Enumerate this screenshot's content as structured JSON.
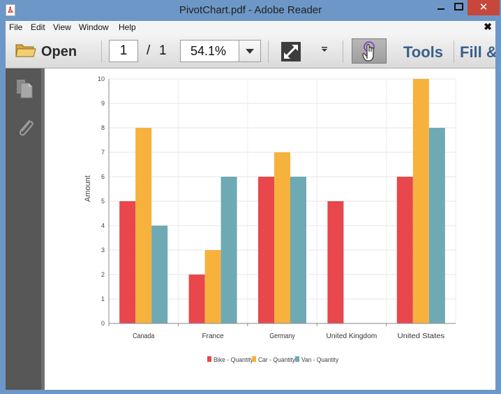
{
  "window": {
    "title": "PivotChart.pdf - Adobe Reader",
    "close_glyph": "✕"
  },
  "menu": {
    "items": [
      "File",
      "Edit",
      "View",
      "Window",
      "Help"
    ],
    "close_glyph": "✖"
  },
  "toolbar": {
    "open_label": "Open",
    "page_current": "1",
    "page_separator": "/",
    "page_total": "1",
    "zoom": "54.1%",
    "tools_label": "Tools",
    "fill_label": "Fill &"
  },
  "icons": {
    "app": "pdf-icon",
    "open": "folder-icon",
    "fit": "expand-arrows-icon",
    "more": "chevron-down-icon",
    "hand": "hand-pointer-icon",
    "pages": "pages-icon",
    "attachments": "paperclip-icon"
  },
  "colors": {
    "titlebar": "#6d97c6",
    "bike": "#e8474c",
    "car": "#f6b23d",
    "van": "#6eaab3",
    "accent_text": "#3a5f8a"
  },
  "chart_data": {
    "type": "bar",
    "title": "",
    "xlabel": "",
    "ylabel": "Amount",
    "ylim": [
      0,
      10
    ],
    "yticks": [
      "0",
      "1",
      "2",
      "3",
      "4",
      "5",
      "6",
      "7",
      "8",
      "9",
      "10"
    ],
    "categories": [
      "Canada",
      "France",
      "Germany",
      "United Kingdom",
      "United States"
    ],
    "series": [
      {
        "name": "Bike - Quantity",
        "color": "#e8474c",
        "values": [
          5,
          2,
          6,
          5,
          6
        ]
      },
      {
        "name": "Car - Quantity",
        "color": "#f6b23d",
        "values": [
          8,
          3,
          7,
          0,
          10
        ]
      },
      {
        "name": "Van - Quantity",
        "color": "#6eaab3",
        "values": [
          4,
          6,
          6,
          0,
          8
        ]
      }
    ],
    "grid": true,
    "legend_position": "bottom"
  }
}
